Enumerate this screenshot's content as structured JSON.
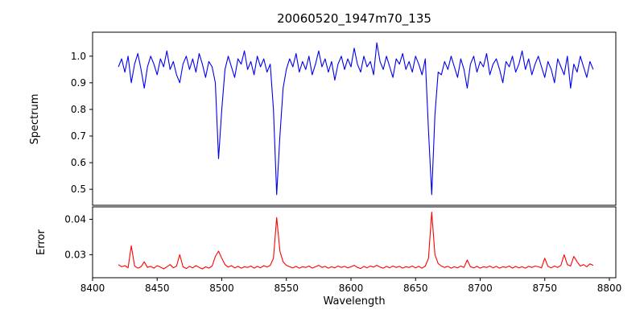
{
  "chart_data": {
    "type": "line",
    "title": "20060520_1947m70_135",
    "xlabel": "Wavelength",
    "xlim": [
      8400,
      8805
    ],
    "x_start": 8420,
    "x_step": 2.5,
    "xtick_values": [
      8400,
      8450,
      8500,
      8550,
      8600,
      8650,
      8700,
      8750,
      8800
    ],
    "xtick_labels": [
      "8400",
      "8450",
      "8500",
      "8550",
      "8600",
      "8650",
      "8700",
      "8750",
      "8800"
    ],
    "grid": false,
    "legend": "none",
    "panels": [
      {
        "name": "spectrum",
        "ylabel": "Spectrum",
        "color": "#0000ee",
        "ylim": [
          0.44,
          1.09
        ],
        "ytick_values": [
          0.5,
          0.6,
          0.7,
          0.8,
          0.9,
          1.0
        ],
        "ytick_labels": [
          "0.5",
          "0.6",
          "0.7",
          "0.8",
          "0.9",
          "1.0"
        ],
        "absorption_lines": [
          {
            "center": 8498,
            "min_value": 0.61
          },
          {
            "center": 8542,
            "min_value": 0.48
          },
          {
            "center": 8662,
            "min_value": 0.48
          }
        ],
        "y": [
          0.96,
          0.99,
          0.94,
          1.0,
          0.9,
          0.97,
          1.01,
          0.95,
          0.88,
          0.96,
          1.0,
          0.97,
          0.93,
          0.99,
          0.96,
          1.02,
          0.95,
          0.98,
          0.93,
          0.9,
          0.97,
          1.0,
          0.95,
          0.99,
          0.94,
          1.01,
          0.97,
          0.92,
          0.98,
          0.96,
          0.9,
          0.615,
          0.8,
          0.95,
          1.0,
          0.96,
          0.92,
          0.99,
          0.97,
          1.02,
          0.95,
          0.98,
          0.93,
          1.0,
          0.96,
          0.99,
          0.94,
          0.97,
          0.8,
          0.48,
          0.7,
          0.88,
          0.95,
          0.99,
          0.96,
          1.01,
          0.94,
          0.98,
          0.95,
          1.0,
          0.93,
          0.97,
          1.02,
          0.96,
          0.99,
          0.94,
          0.98,
          0.91,
          0.97,
          1.0,
          0.95,
          0.99,
          0.96,
          1.03,
          0.97,
          0.94,
          1.0,
          0.96,
          0.98,
          0.93,
          1.05,
          0.98,
          0.95,
          1.0,
          0.96,
          0.92,
          0.99,
          0.97,
          1.01,
          0.95,
          0.98,
          0.94,
          1.0,
          0.97,
          0.93,
          0.99,
          0.72,
          0.48,
          0.78,
          0.94,
          0.93,
          0.98,
          0.95,
          1.0,
          0.96,
          0.92,
          0.99,
          0.95,
          0.88,
          0.97,
          1.0,
          0.94,
          0.98,
          0.96,
          1.01,
          0.93,
          0.97,
          0.99,
          0.95,
          0.9,
          0.98,
          0.96,
          1.0,
          0.94,
          0.97,
          1.02,
          0.95,
          0.99,
          0.93,
          0.97,
          1.0,
          0.96,
          0.92,
          0.98,
          0.95,
          0.9,
          0.99,
          0.96,
          0.93,
          1.0,
          0.88,
          0.97,
          0.94,
          1.0,
          0.96,
          0.92,
          0.98,
          0.95
        ]
      },
      {
        "name": "error",
        "ylabel": "Error",
        "color": "#ff0000",
        "ylim": [
          0.0235,
          0.0435
        ],
        "ytick_values": [
          0.03,
          0.04
        ],
        "ytick_labels": [
          "0.03",
          "0.04"
        ],
        "y": [
          0.0272,
          0.0266,
          0.0269,
          0.0263,
          0.0325,
          0.0268,
          0.0262,
          0.0266,
          0.028,
          0.0264,
          0.0267,
          0.0262,
          0.0269,
          0.0265,
          0.026,
          0.0266,
          0.0272,
          0.0263,
          0.0268,
          0.03,
          0.0266,
          0.0261,
          0.0267,
          0.0263,
          0.0269,
          0.0264,
          0.026,
          0.0266,
          0.0262,
          0.0268,
          0.0295,
          0.031,
          0.029,
          0.0272,
          0.0265,
          0.0269,
          0.0263,
          0.0267,
          0.0262,
          0.0266,
          0.0264,
          0.0268,
          0.0262,
          0.0267,
          0.0263,
          0.0269,
          0.0265,
          0.027,
          0.029,
          0.0405,
          0.031,
          0.028,
          0.027,
          0.0266,
          0.0263,
          0.0267,
          0.0262,
          0.0266,
          0.0264,
          0.0268,
          0.0262,
          0.0266,
          0.027,
          0.0264,
          0.0267,
          0.0262,
          0.0266,
          0.0263,
          0.0268,
          0.0264,
          0.0267,
          0.0263,
          0.0266,
          0.027,
          0.0264,
          0.0261,
          0.0267,
          0.0263,
          0.0268,
          0.0265,
          0.027,
          0.0265,
          0.0262,
          0.0267,
          0.0263,
          0.0268,
          0.0264,
          0.0267,
          0.0262,
          0.0266,
          0.0264,
          0.0268,
          0.0263,
          0.0267,
          0.0262,
          0.0268,
          0.029,
          0.042,
          0.03,
          0.0275,
          0.0268,
          0.0264,
          0.0267,
          0.0262,
          0.0266,
          0.0263,
          0.0268,
          0.0264,
          0.0285,
          0.0266,
          0.0263,
          0.0267,
          0.0262,
          0.0266,
          0.0264,
          0.0268,
          0.0263,
          0.0267,
          0.0262,
          0.0266,
          0.0264,
          0.0268,
          0.0262,
          0.0267,
          0.0263,
          0.0266,
          0.0262,
          0.0267,
          0.0264,
          0.0268,
          0.0266,
          0.0263,
          0.029,
          0.0267,
          0.0263,
          0.0268,
          0.0264,
          0.027,
          0.03,
          0.0272,
          0.0268,
          0.0295,
          0.028,
          0.0268,
          0.0272,
          0.0266,
          0.0274,
          0.027
        ]
      }
    ]
  }
}
